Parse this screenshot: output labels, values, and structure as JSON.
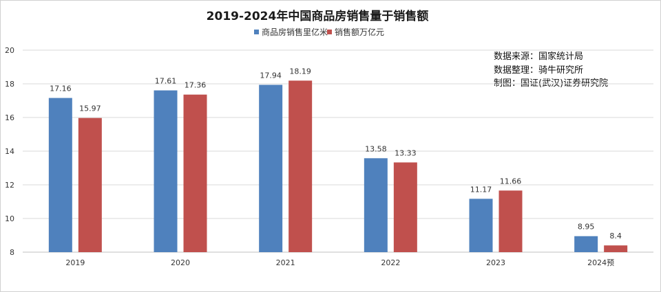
{
  "chart_data": {
    "type": "bar",
    "title": "2019-2024年中国商品房销售量于销售额",
    "categories": [
      "2019",
      "2020",
      "2021",
      "2022",
      "2023",
      "2024预"
    ],
    "series": [
      {
        "name": "商品房销售里亿米",
        "values": [
          17.16,
          17.61,
          17.94,
          13.58,
          11.17,
          8.95
        ],
        "labels": [
          "17.16",
          "17.61",
          "17.94",
          "13.58",
          "11.17",
          "8.95"
        ],
        "color": "#4F81BD"
      },
      {
        "name": "销售额万亿元",
        "values": [
          15.97,
          17.36,
          18.19,
          13.33,
          11.66,
          8.4
        ],
        "labels": [
          "15.97",
          "17.36",
          "18.19",
          "13.33",
          "11.66",
          "8.4"
        ],
        "color": "#C0504D"
      }
    ],
    "ylim": [
      8,
      20
    ],
    "yticks": [
      "8",
      "10",
      "12",
      "14",
      "16",
      "18",
      "20"
    ],
    "grid": true,
    "legend": "top-center"
  },
  "annotation": {
    "lines": [
      "数据来源：国家统计局",
      "数据整理：骑牛研究所",
      "制图：国证(武汉)证券研究院"
    ]
  }
}
